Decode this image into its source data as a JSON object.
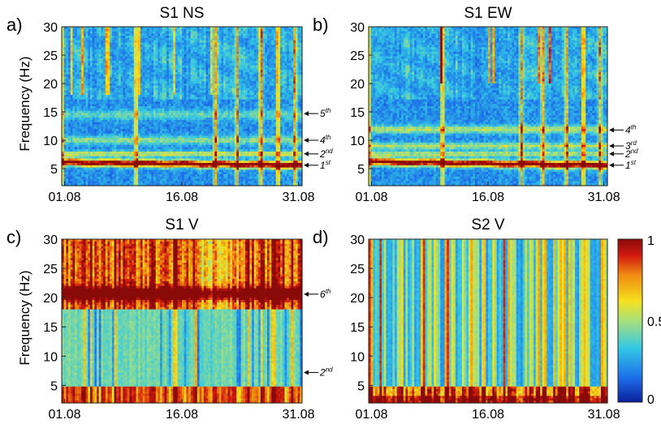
{
  "chart_data": [
    {
      "type": "heatmap",
      "panel_letter": "a)",
      "title": "S1 NS",
      "ylabel": "Frequency (Hz)",
      "ylim": [
        2,
        30
      ],
      "yticks": [
        "5",
        "10",
        "15",
        "20",
        "25",
        "30"
      ],
      "xticks": [
        "01.08",
        "16.08",
        "31.08"
      ],
      "annotations": [
        {
          "label": "5",
          "suffix": "th",
          "freq": 14.7
        },
        {
          "label": "4",
          "suffix": "th",
          "freq": 10.0
        },
        {
          "label": "2",
          "suffix": "nd",
          "freq": 7.6
        },
        {
          "label": "1",
          "suffix": "st",
          "freq": 5.6
        }
      ]
    },
    {
      "type": "heatmap",
      "panel_letter": "b)",
      "title": "S1 EW",
      "ylabel": "",
      "ylim": [
        2,
        30
      ],
      "yticks": [
        "5",
        "10",
        "15",
        "20",
        "25",
        "30"
      ],
      "xticks": [
        "01.08",
        "16.08",
        "31.08"
      ],
      "annotations": [
        {
          "label": "4",
          "suffix": "th",
          "freq": 11.8
        },
        {
          "label": "3",
          "suffix": "rd",
          "freq": 9.0
        },
        {
          "label": "2",
          "suffix": "nd",
          "freq": 7.6
        },
        {
          "label": "1",
          "suffix": "st",
          "freq": 5.6
        }
      ]
    },
    {
      "type": "heatmap",
      "panel_letter": "c)",
      "title": "S1 V",
      "ylabel": "Frequency (Hz)",
      "ylim": [
        2,
        30
      ],
      "yticks": [
        "5",
        "10",
        "15",
        "20",
        "25",
        "30"
      ],
      "xticks": [
        "01.08",
        "16.08",
        "31.08"
      ],
      "annotations": [
        {
          "label": "6",
          "suffix": "th",
          "freq": 20.6
        },
        {
          "label": "2",
          "suffix": "nd",
          "freq": 7.2
        }
      ]
    },
    {
      "type": "heatmap",
      "panel_letter": "d)",
      "title": "S2 V",
      "ylabel": "",
      "ylim": [
        2,
        30
      ],
      "yticks": [
        "5",
        "10",
        "15",
        "20",
        "25",
        "30"
      ],
      "xticks": [
        "01.08",
        "16.08",
        "31.08"
      ],
      "annotations": []
    }
  ],
  "colorbar": {
    "ticks": [
      "1",
      "0.5",
      "0"
    ],
    "range": [
      0,
      1
    ],
    "colormap": "jet",
    "colors": [
      "#0a1f9b",
      "#1d6fe8",
      "#33c8e6",
      "#a8e07a",
      "#f5e11e",
      "#f08a12",
      "#d21a10",
      "#8a0a0a"
    ]
  }
}
